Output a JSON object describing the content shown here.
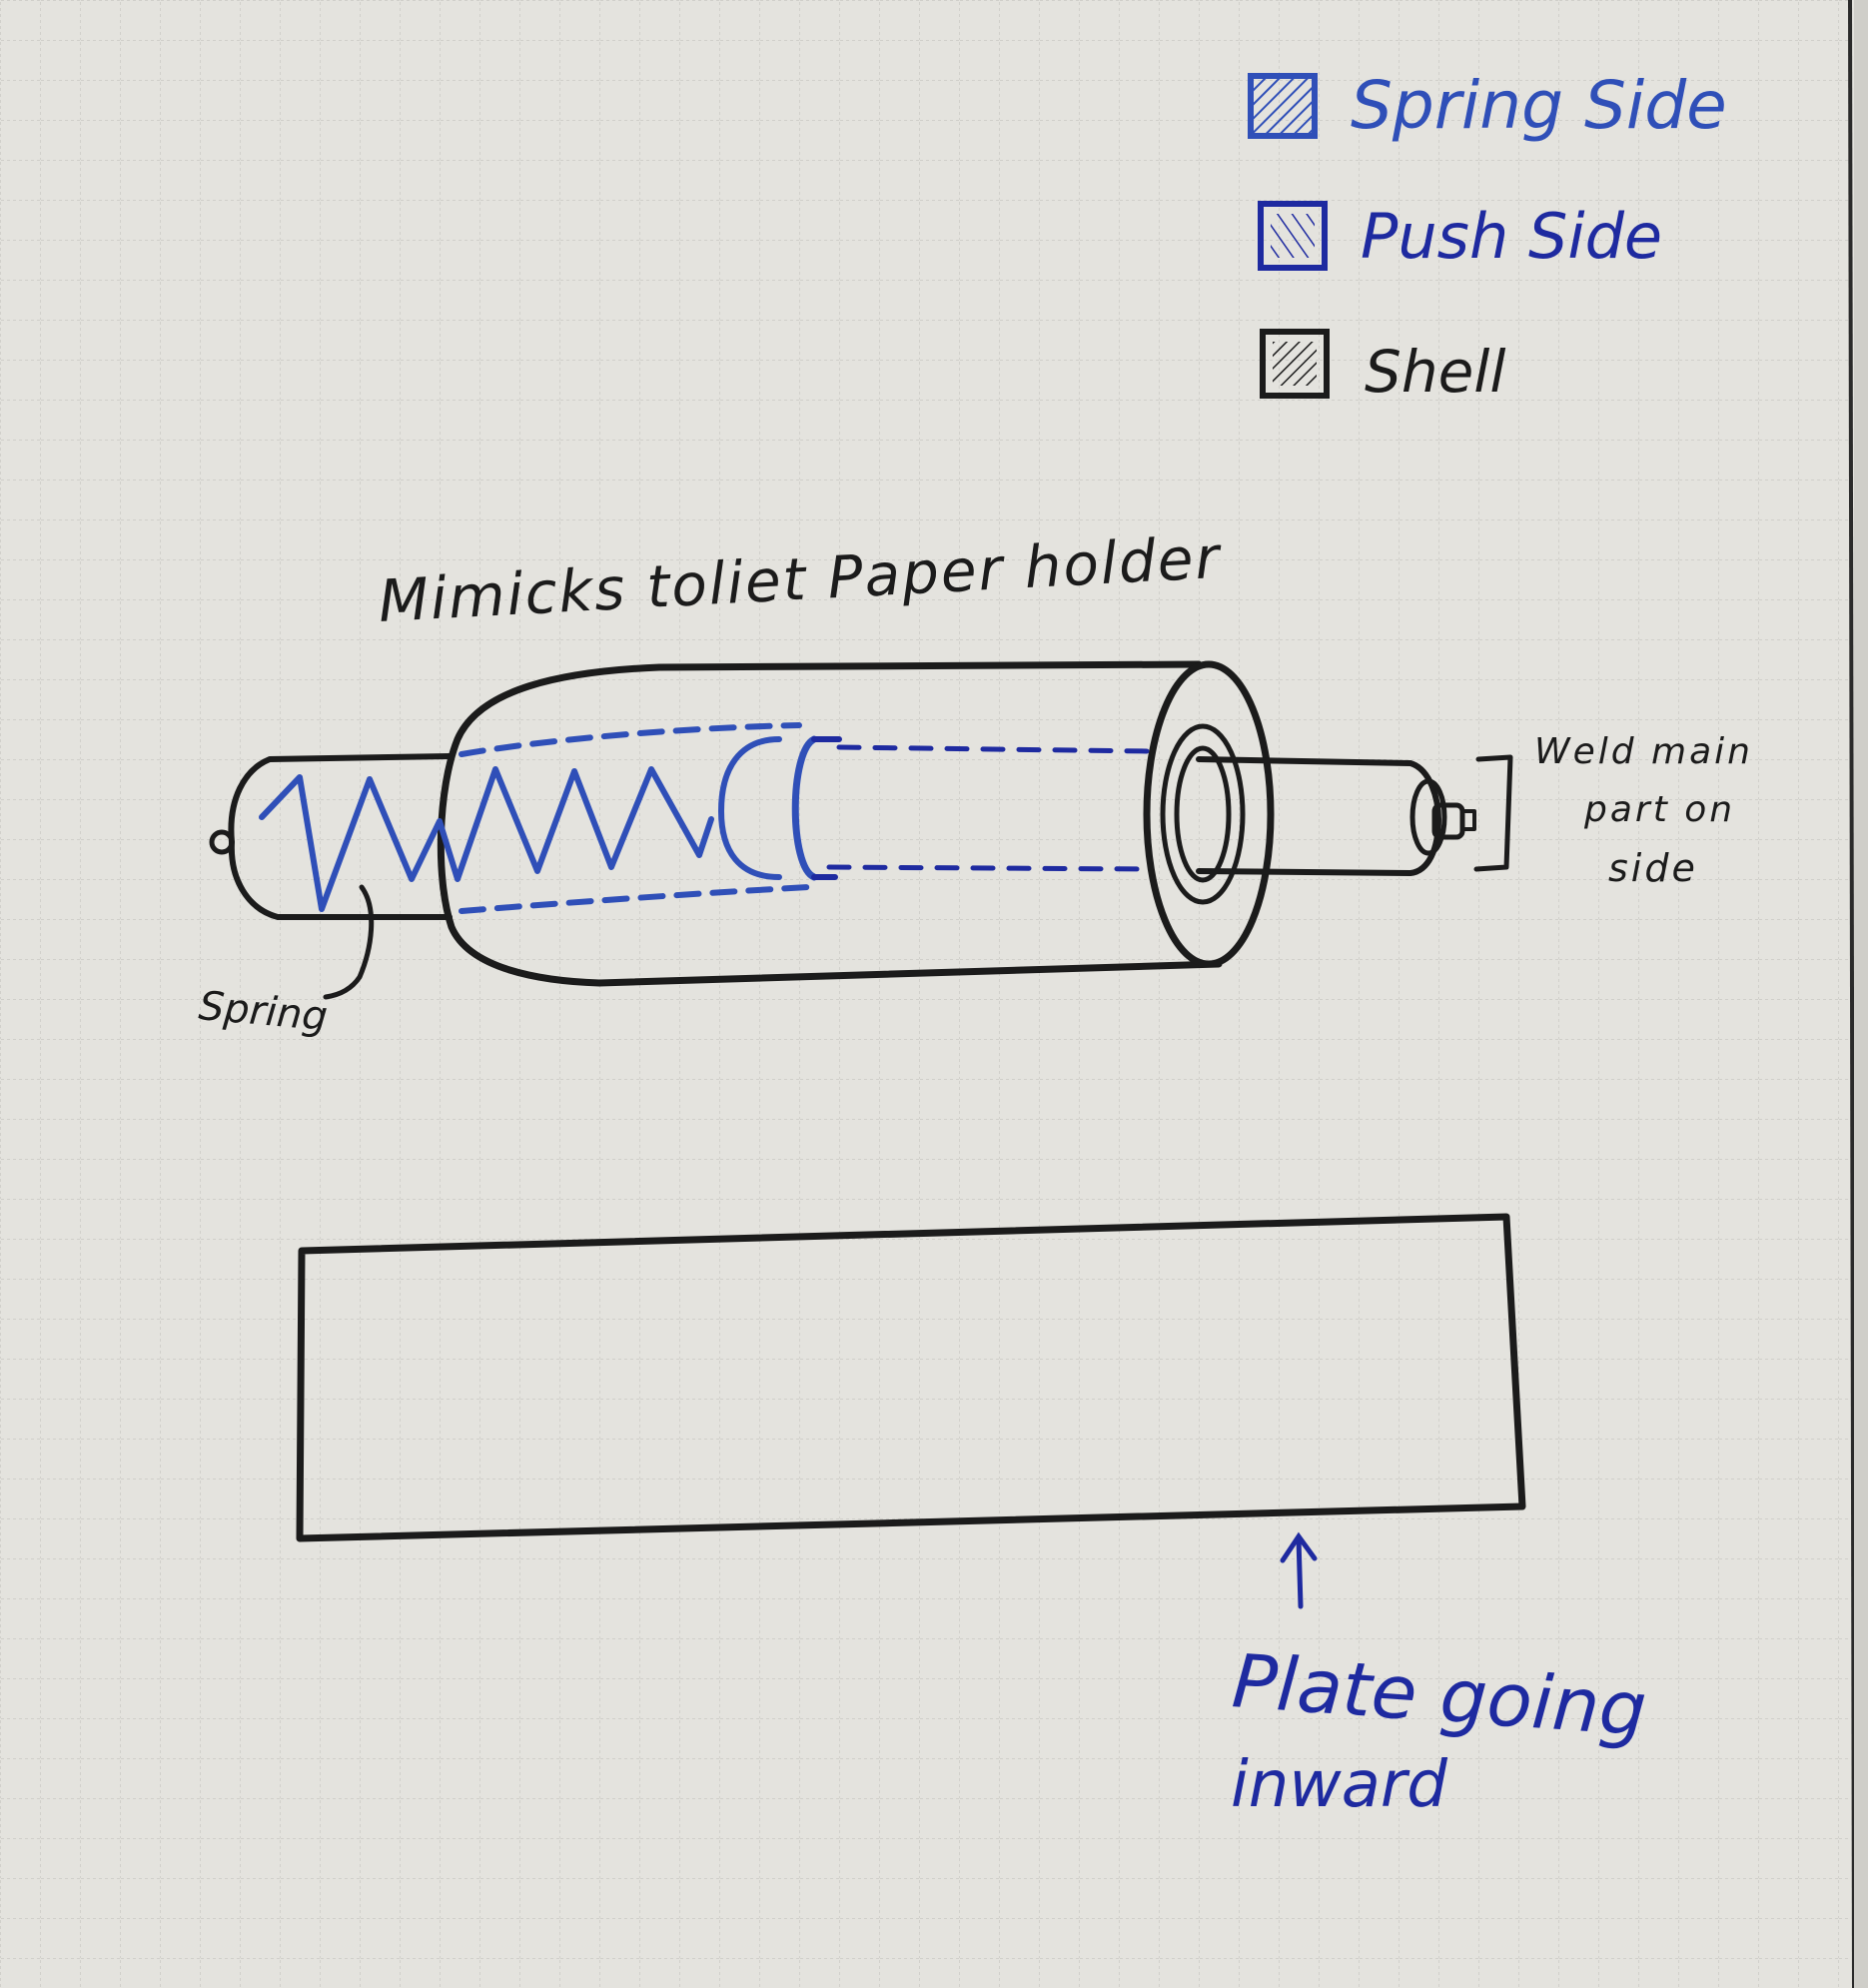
{
  "colors": {
    "paper": "#e4e3de",
    "grid": "#c7c6c1",
    "ink_black": "#1b1b1b",
    "ink_blue": "#2f4fb8",
    "ink_navy": "#1e2aa0"
  },
  "legend": {
    "items": [
      {
        "label": "Spring Side",
        "swatch": "blue-hatch"
      },
      {
        "label": "Push Side",
        "swatch": "blue-hatch-outline"
      },
      {
        "label": "Shell",
        "swatch": "black-hatch"
      }
    ]
  },
  "diagram": {
    "title": "Mimicks toliet Paper holder",
    "spring_label": "Spring",
    "weld_label_lines": [
      "Weld main",
      "part on",
      "side"
    ],
    "plate_label_lines": [
      "Plate going",
      "inward"
    ]
  }
}
